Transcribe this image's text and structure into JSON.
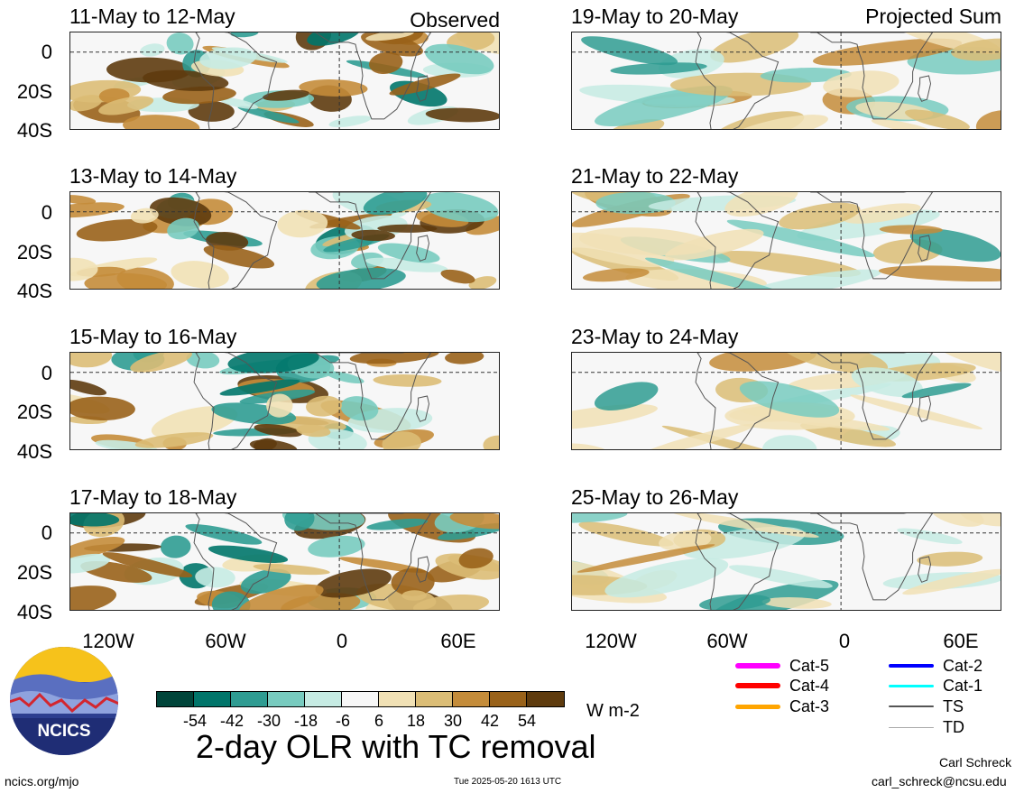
{
  "panels_observed": [
    {
      "date_range": "11-May to 12-May",
      "tag": "Observed"
    },
    {
      "date_range": "13-May to 14-May",
      "tag": ""
    },
    {
      "date_range": "15-May to 16-May",
      "tag": ""
    },
    {
      "date_range": "17-May to 18-May",
      "tag": ""
    }
  ],
  "panels_projected": [
    {
      "date_range": "19-May to 20-May",
      "tag": "Projected Sum"
    },
    {
      "date_range": "21-May to 22-May",
      "tag": ""
    },
    {
      "date_range": "23-May to 24-May",
      "tag": ""
    },
    {
      "date_range": "25-May to 26-May",
      "tag": ""
    }
  ],
  "lat_labels": [
    "0",
    "20S",
    "40S"
  ],
  "lon_labels": [
    "120W",
    "60W",
    "0",
    "60E"
  ],
  "colorbar": {
    "ticks": [
      "-54",
      "-42",
      "-30",
      "-18",
      "-6",
      "6",
      "18",
      "30",
      "42",
      "54"
    ],
    "colors": [
      "#00453a",
      "#00756a",
      "#2f9c92",
      "#78cbbf",
      "#c6ebe3",
      "#f7f7f7",
      "#f1e1b5",
      "#dbbd76",
      "#c48c3a",
      "#99621a",
      "#5e3b0e"
    ],
    "units": "W m-2"
  },
  "tc_legend": [
    {
      "label": "Cat-5",
      "color": "#ff00ff"
    },
    {
      "label": "Cat-4",
      "color": "#ff0000"
    },
    {
      "label": "Cat-3",
      "color": "#ffa500"
    },
    {
      "label": "Cat-2",
      "color": "#0000ff"
    },
    {
      "label": "Cat-1",
      "color": "#00ffff"
    },
    {
      "label": "TS",
      "color": "#555555"
    },
    {
      "label": "TD",
      "color": "#aaaaaa"
    }
  ],
  "title": "2-day OLR with TC removal",
  "logo_text": "NCICS",
  "footer": {
    "site": "ncics.org/mjo",
    "timestamp": "Tue 2025-05-20 1613 UTC",
    "author": "Carl Schreck",
    "email": "carl_schreck@ncsu.edu"
  }
}
